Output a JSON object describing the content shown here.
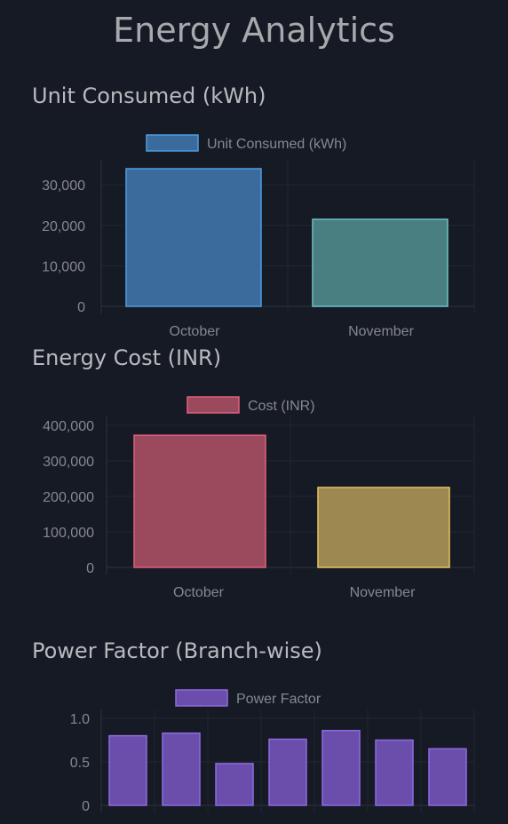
{
  "page": {
    "title": "Energy Analytics"
  },
  "chart_data": [
    {
      "type": "bar",
      "title": "Unit Consumed (kWh)",
      "categories": [
        "October",
        "November"
      ],
      "series": [
        {
          "name": "Unit Consumed (kWh)",
          "values": [
            34000,
            21500
          ]
        }
      ],
      "bar_fill_colors": [
        "#3b6a9c",
        "#4a7f82"
      ],
      "bar_stroke_colors": [
        "#4f9ce0",
        "#6cc2c4"
      ],
      "legend_fill": "#3b6a9c",
      "legend_stroke": "#4f9ce0",
      "yticks": [
        0,
        10000,
        20000,
        30000
      ],
      "ylim": [
        0,
        34000
      ],
      "legend": "top-center",
      "grid": true
    },
    {
      "type": "bar",
      "title": "Energy Cost (INR)",
      "categories": [
        "October",
        "November"
      ],
      "series": [
        {
          "name": "Cost (INR)",
          "values": [
            372000,
            225000
          ]
        }
      ],
      "bar_fill_colors": [
        "#9b4a5e",
        "#9c8850"
      ],
      "bar_stroke_colors": [
        "#e0607c",
        "#e6c45e"
      ],
      "legend_fill": "#9b4a5e",
      "legend_stroke": "#e0607c",
      "yticks": [
        0,
        100000,
        200000,
        300000,
        400000
      ],
      "ylim": [
        0,
        400000
      ],
      "legend": "top-center",
      "grid": true
    },
    {
      "type": "bar",
      "title": "Power Factor (Branch-wise)",
      "categories": [
        "",
        "",
        "",
        "",
        "",
        "",
        ""
      ],
      "series": [
        {
          "name": "Power Factor",
          "values": [
            0.8,
            0.83,
            0.48,
            0.76,
            0.86,
            0.75,
            0.65
          ]
        }
      ],
      "bar_fill_colors": [
        "#6b4dab",
        "#6b4dab",
        "#6b4dab",
        "#6b4dab",
        "#6b4dab",
        "#6b4dab",
        "#6b4dab"
      ],
      "bar_stroke_colors": [
        "#8c6ce0",
        "#8c6ce0",
        "#8c6ce0",
        "#8c6ce0",
        "#8c6ce0",
        "#8c6ce0",
        "#8c6ce0"
      ],
      "legend_fill": "#6b4dab",
      "legend_stroke": "#8c6ce0",
      "yticks": [
        0,
        0.5,
        1.0
      ],
      "ytick_labels": [
        "0",
        "0.5",
        "1.0"
      ],
      "ylim": [
        0,
        1.0
      ],
      "legend": "top-center",
      "grid": true
    }
  ]
}
